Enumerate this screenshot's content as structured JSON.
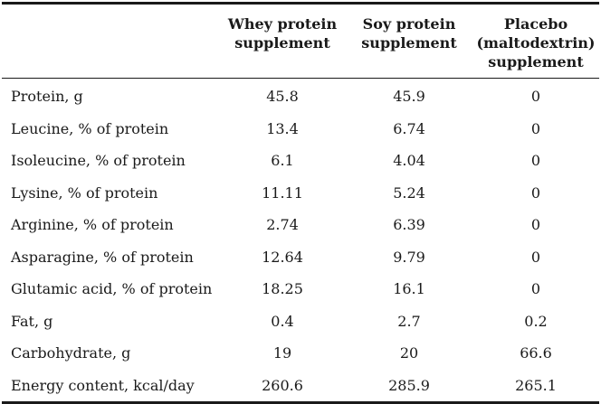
{
  "table": {
    "columns": [
      {
        "label": "Whey protein\nsupplement"
      },
      {
        "label": "Soy protein\nsupplement"
      },
      {
        "label": "Placebo\n(maltodextrin)\nsupplement"
      }
    ],
    "rows": [
      {
        "label": "Protein, g",
        "values": [
          "45.8",
          "45.9",
          "0"
        ]
      },
      {
        "label": "Leucine, % of protein",
        "values": [
          "13.4",
          "6.74",
          "0"
        ]
      },
      {
        "label": "Isoleucine, % of protein",
        "values": [
          "6.1",
          "4.04",
          "0"
        ]
      },
      {
        "label": "Lysine, % of protein",
        "values": [
          "11.11",
          "5.24",
          "0"
        ]
      },
      {
        "label": "Arginine, % of protein",
        "values": [
          "2.74",
          "6.39",
          "0"
        ]
      },
      {
        "label": "Asparagine, % of protein",
        "values": [
          "12.64",
          "9.79",
          "0"
        ]
      },
      {
        "label": "Glutamic acid, % of protein",
        "values": [
          "18.25",
          "16.1",
          "0"
        ]
      },
      {
        "label": "Fat, g",
        "values": [
          "0.4",
          "2.7",
          "0.2"
        ]
      },
      {
        "label": "Carbohydrate, g",
        "values": [
          "19",
          "20",
          "66.6"
        ]
      },
      {
        "label": "Energy content, kcal/day",
        "values": [
          "260.6",
          "285.9",
          "265.1"
        ]
      }
    ]
  }
}
